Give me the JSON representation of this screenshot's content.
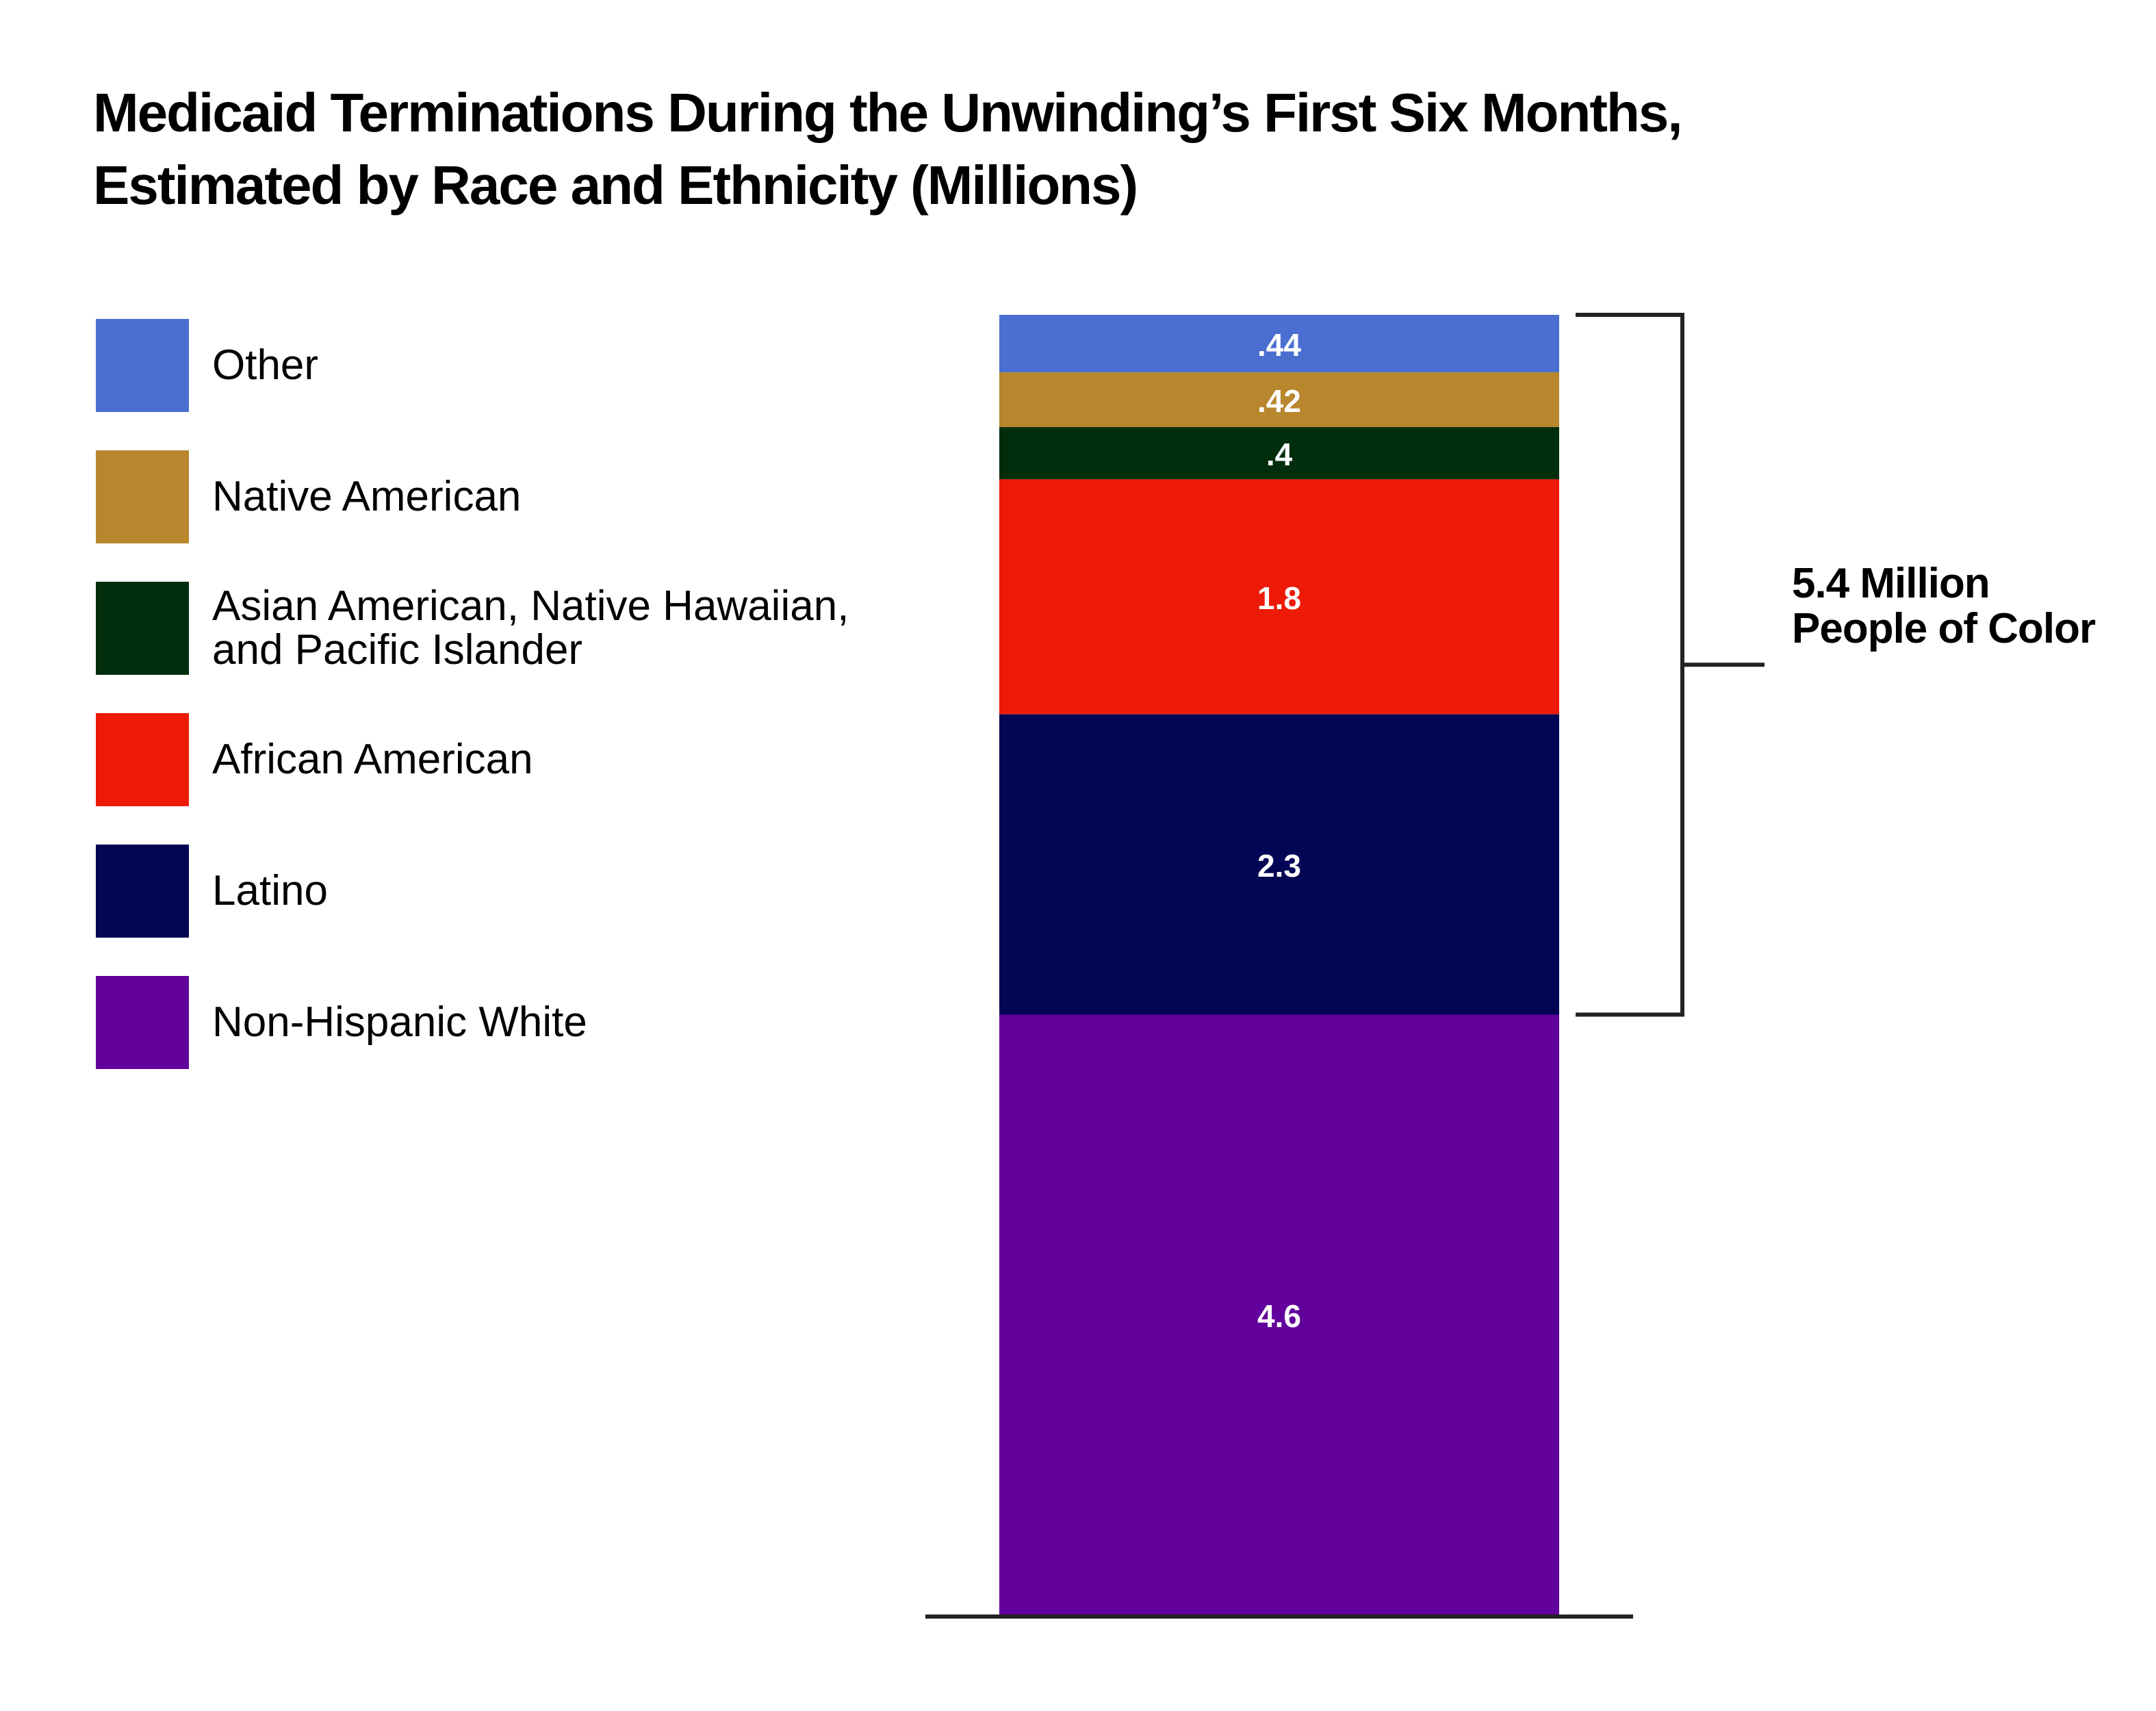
{
  "chart_data": {
    "type": "bar",
    "stacked": true,
    "title_lines": [
      "Medicaid Terminations During the Unwinding’s First Six Months,",
      "Estimated by Race and Ethnicity (Millions)"
    ],
    "xlabel": "",
    "ylabel": "",
    "grid": false,
    "legend_placement": "left",
    "series": [
      {
        "name": "Other",
        "value": 0.44,
        "label": ".44",
        "color": "#4a6fd0"
      },
      {
        "name": "Native American",
        "value": 0.42,
        "label": ".42",
        "color": "#b8862d"
      },
      {
        "name": "Asian American, Native Hawaiian, and Pacific Islander",
        "name_lines": [
          "Asian American, Native Hawaiian,",
          "and Pacific Islander"
        ],
        "value": 0.4,
        "label": ".4",
        "color": "#002d0b"
      },
      {
        "name": "African American",
        "value": 1.8,
        "label": "1.8",
        "color": "#ec1a07"
      },
      {
        "name": "Latino",
        "value": 2.3,
        "label": "2.3",
        "color": "#030655"
      },
      {
        "name": "Non-Hispanic White",
        "value": 4.6,
        "label": "4.6",
        "color": "#63019c"
      }
    ],
    "bracket": {
      "lines": [
        "5.4 Million",
        "People of Color"
      ],
      "series_covered": [
        "Other",
        "Native American",
        "Asian American, Native Hawaiian, and Pacific Islander",
        "African American",
        "Latino"
      ]
    }
  }
}
